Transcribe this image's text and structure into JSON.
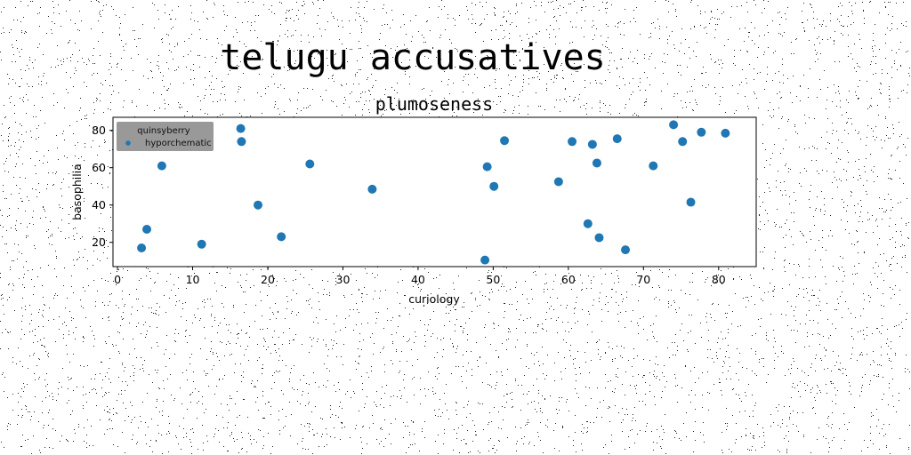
{
  "figure": {
    "suptitle": "telugu accusatives"
  },
  "colors": {
    "marker": "#1f77b4",
    "legend_bg": "#999999",
    "background": "#ffffff"
  },
  "chart_data": {
    "type": "scatter",
    "title": "plumoseness",
    "xlabel": "curiology",
    "ylabel": "basophilia",
    "xlim": [
      -0.6,
      85
    ],
    "ylim": [
      7,
      87
    ],
    "xticks": [
      0,
      10,
      20,
      30,
      40,
      50,
      60,
      70,
      80
    ],
    "yticks": [
      20,
      40,
      60,
      80
    ],
    "grid": false,
    "legend": {
      "placement": "top-left",
      "title": "quinsyberry",
      "entries": [
        "hyporchematic"
      ]
    },
    "series": [
      {
        "name": "hyporchematic",
        "points": [
          [
            3.2,
            17
          ],
          [
            3.9,
            27
          ],
          [
            5.9,
            61
          ],
          [
            11.2,
            19
          ],
          [
            16.4,
            81
          ],
          [
            16.5,
            74
          ],
          [
            18.7,
            40
          ],
          [
            21.8,
            23
          ],
          [
            25.6,
            62
          ],
          [
            33.9,
            48.5
          ],
          [
            48.9,
            10.5
          ],
          [
            49.2,
            60.5
          ],
          [
            50.1,
            50
          ],
          [
            51.5,
            74.5
          ],
          [
            58.7,
            52.5
          ],
          [
            60.5,
            74
          ],
          [
            62.6,
            30
          ],
          [
            63.2,
            72.5
          ],
          [
            63.8,
            62.5
          ],
          [
            64.1,
            22.5
          ],
          [
            66.5,
            75.5
          ],
          [
            67.6,
            16
          ],
          [
            71.3,
            61
          ],
          [
            74,
            83
          ],
          [
            75.2,
            74
          ],
          [
            76.3,
            41.5
          ],
          [
            77.7,
            79
          ],
          [
            80.9,
            78.5
          ]
        ]
      }
    ]
  }
}
